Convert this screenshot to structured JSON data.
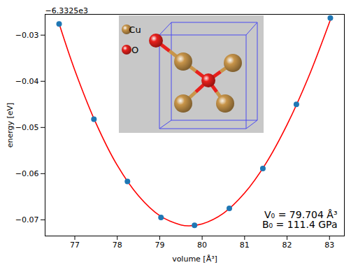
{
  "chart_data": {
    "type": "scatter",
    "xlabel": "volume [Å³]",
    "ylabel": "energy [eV]",
    "y_offset_label": "−6.3325e3",
    "xlim": [
      76.3,
      83.35
    ],
    "ylim": [
      -0.0735,
      -0.0255
    ],
    "xticks": [
      77,
      78,
      79,
      80,
      81,
      82,
      83
    ],
    "yticks": [
      {
        "value": -0.07,
        "label": "−0.07"
      },
      {
        "value": -0.06,
        "label": "−0.06"
      },
      {
        "value": -0.05,
        "label": "−0.05"
      },
      {
        "value": -0.04,
        "label": "−0.04"
      },
      {
        "value": -0.03,
        "label": "−0.03"
      }
    ],
    "grid": false,
    "series": [
      {
        "type": "line",
        "color": "red",
        "line_style": "solid",
        "x": [
          76.63,
          77.0,
          77.5,
          78.0,
          78.5,
          79.0,
          79.5,
          79.7,
          80.0,
          80.5,
          81.0,
          81.5,
          82.0,
          82.5,
          83.02
        ],
        "values": [
          -0.0275,
          -0.0376,
          -0.0491,
          -0.0582,
          -0.0648,
          -0.0691,
          -0.0711,
          -0.0713,
          -0.0709,
          -0.0686,
          -0.0642,
          -0.0578,
          -0.0494,
          -0.0392,
          -0.0267
        ]
      },
      {
        "type": "scatter",
        "color": "#1f77b4",
        "marker": "circle",
        "x": [
          76.63,
          77.45,
          78.24,
          79.03,
          79.82,
          80.64,
          81.43,
          82.22,
          83.02
        ],
        "values": [
          -0.0276,
          -0.0482,
          -0.0617,
          -0.0695,
          -0.0712,
          -0.0675,
          -0.0589,
          -0.045,
          -0.0263
        ]
      }
    ],
    "annotations": [
      "V₀ = 79.704 Å³",
      "B₀ = 111.4 GPa"
    ],
    "inset_legend": [
      {
        "label": "Cu",
        "color": "#c8954a"
      },
      {
        "label": "O",
        "color": "#e8201c"
      }
    ]
  }
}
